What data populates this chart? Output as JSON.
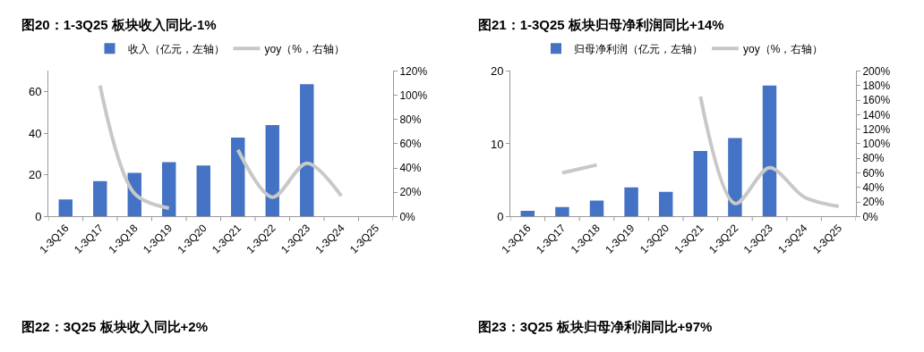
{
  "chart_data": [
    {
      "type": "bar",
      "title": "图20：1-3Q25 板块收入同比-1%",
      "categories": [
        "1-3Q16",
        "1-3Q17",
        "1-3Q18",
        "1-3Q19",
        "1-3Q20",
        "1-3Q21",
        "1-3Q22",
        "1-3Q23",
        "1-3Q24",
        "1-3Q25"
      ],
      "series": [
        {
          "name": "收入（亿元，左轴）",
          "color": "#4472c4",
          "values": [
            8.2,
            17,
            21,
            26.2,
            24.6,
            38,
            44,
            63.7,
            null,
            null
          ]
        },
        {
          "name": "yoy（%，右轴）",
          "color": "#c8c8c8",
          "type": "line",
          "axis": "y2",
          "values": [
            null,
            108,
            19,
            7,
            null,
            55,
            16,
            44,
            17,
            null
          ]
        }
      ],
      "ylim": [
        0,
        70
      ],
      "yticks": [
        0,
        20,
        40,
        60
      ],
      "y2lim": [
        0,
        120
      ],
      "y2ticks": [
        {
          "value": 0,
          "label": "0%"
        },
        {
          "value": 20,
          "label": "20%"
        },
        {
          "value": 40,
          "label": "40%"
        },
        {
          "value": 60,
          "label": "60%"
        },
        {
          "value": 80,
          "label": "80%"
        },
        {
          "value": 100,
          "label": "100%"
        },
        {
          "value": 120,
          "label": "120%"
        }
      ],
      "legend": "top",
      "marker": "none",
      "line_style": "solid",
      "annotations": [
        "图22：3Q25 板块收入同比+2%"
      ]
    },
    {
      "type": "bar",
      "title": "图21：1-3Q25 板块归母净利润同比+14%",
      "categories": [
        "1-3Q16",
        "1-3Q17",
        "1-3Q18",
        "1-3Q19",
        "1-3Q20",
        "1-3Q21",
        "1-3Q22",
        "1-3Q23",
        "1-3Q24",
        "1-3Q25"
      ],
      "series": [
        {
          "name": "归母净利润（亿元，左轴）",
          "color": "#4472c4",
          "values": [
            0.8,
            1.3,
            2.2,
            4.0,
            3.4,
            9.0,
            10.8,
            18,
            null,
            null
          ]
        },
        {
          "name": "yoy（%，右轴）",
          "color": "#c8c8c8",
          "type": "line",
          "axis": "y2",
          "values": [
            null,
            60,
            71,
            null,
            null,
            165,
            18,
            67,
            27,
            14
          ]
        }
      ],
      "ylim": [
        0,
        20
      ],
      "yticks": [
        0,
        10,
        20
      ],
      "y2lim": [
        0,
        200
      ],
      "y2ticks": [
        {
          "value": 0,
          "label": "0%"
        },
        {
          "value": 20,
          "label": "20%"
        },
        {
          "value": 40,
          "label": "40%"
        },
        {
          "value": 60,
          "label": "60%"
        },
        {
          "value": 80,
          "label": "80%"
        },
        {
          "value": 100,
          "label": "100%"
        },
        {
          "value": 120,
          "label": "120%"
        },
        {
          "value": 140,
          "label": "140%"
        },
        {
          "value": 160,
          "label": "160%"
        },
        {
          "value": 180,
          "label": "180%"
        },
        {
          "value": 200,
          "label": "200%"
        }
      ],
      "legend": "top",
      "marker": "none",
      "line_style": "solid",
      "annotations": [
        "图23：3Q25 板块归母净利润同比+97%"
      ]
    }
  ]
}
